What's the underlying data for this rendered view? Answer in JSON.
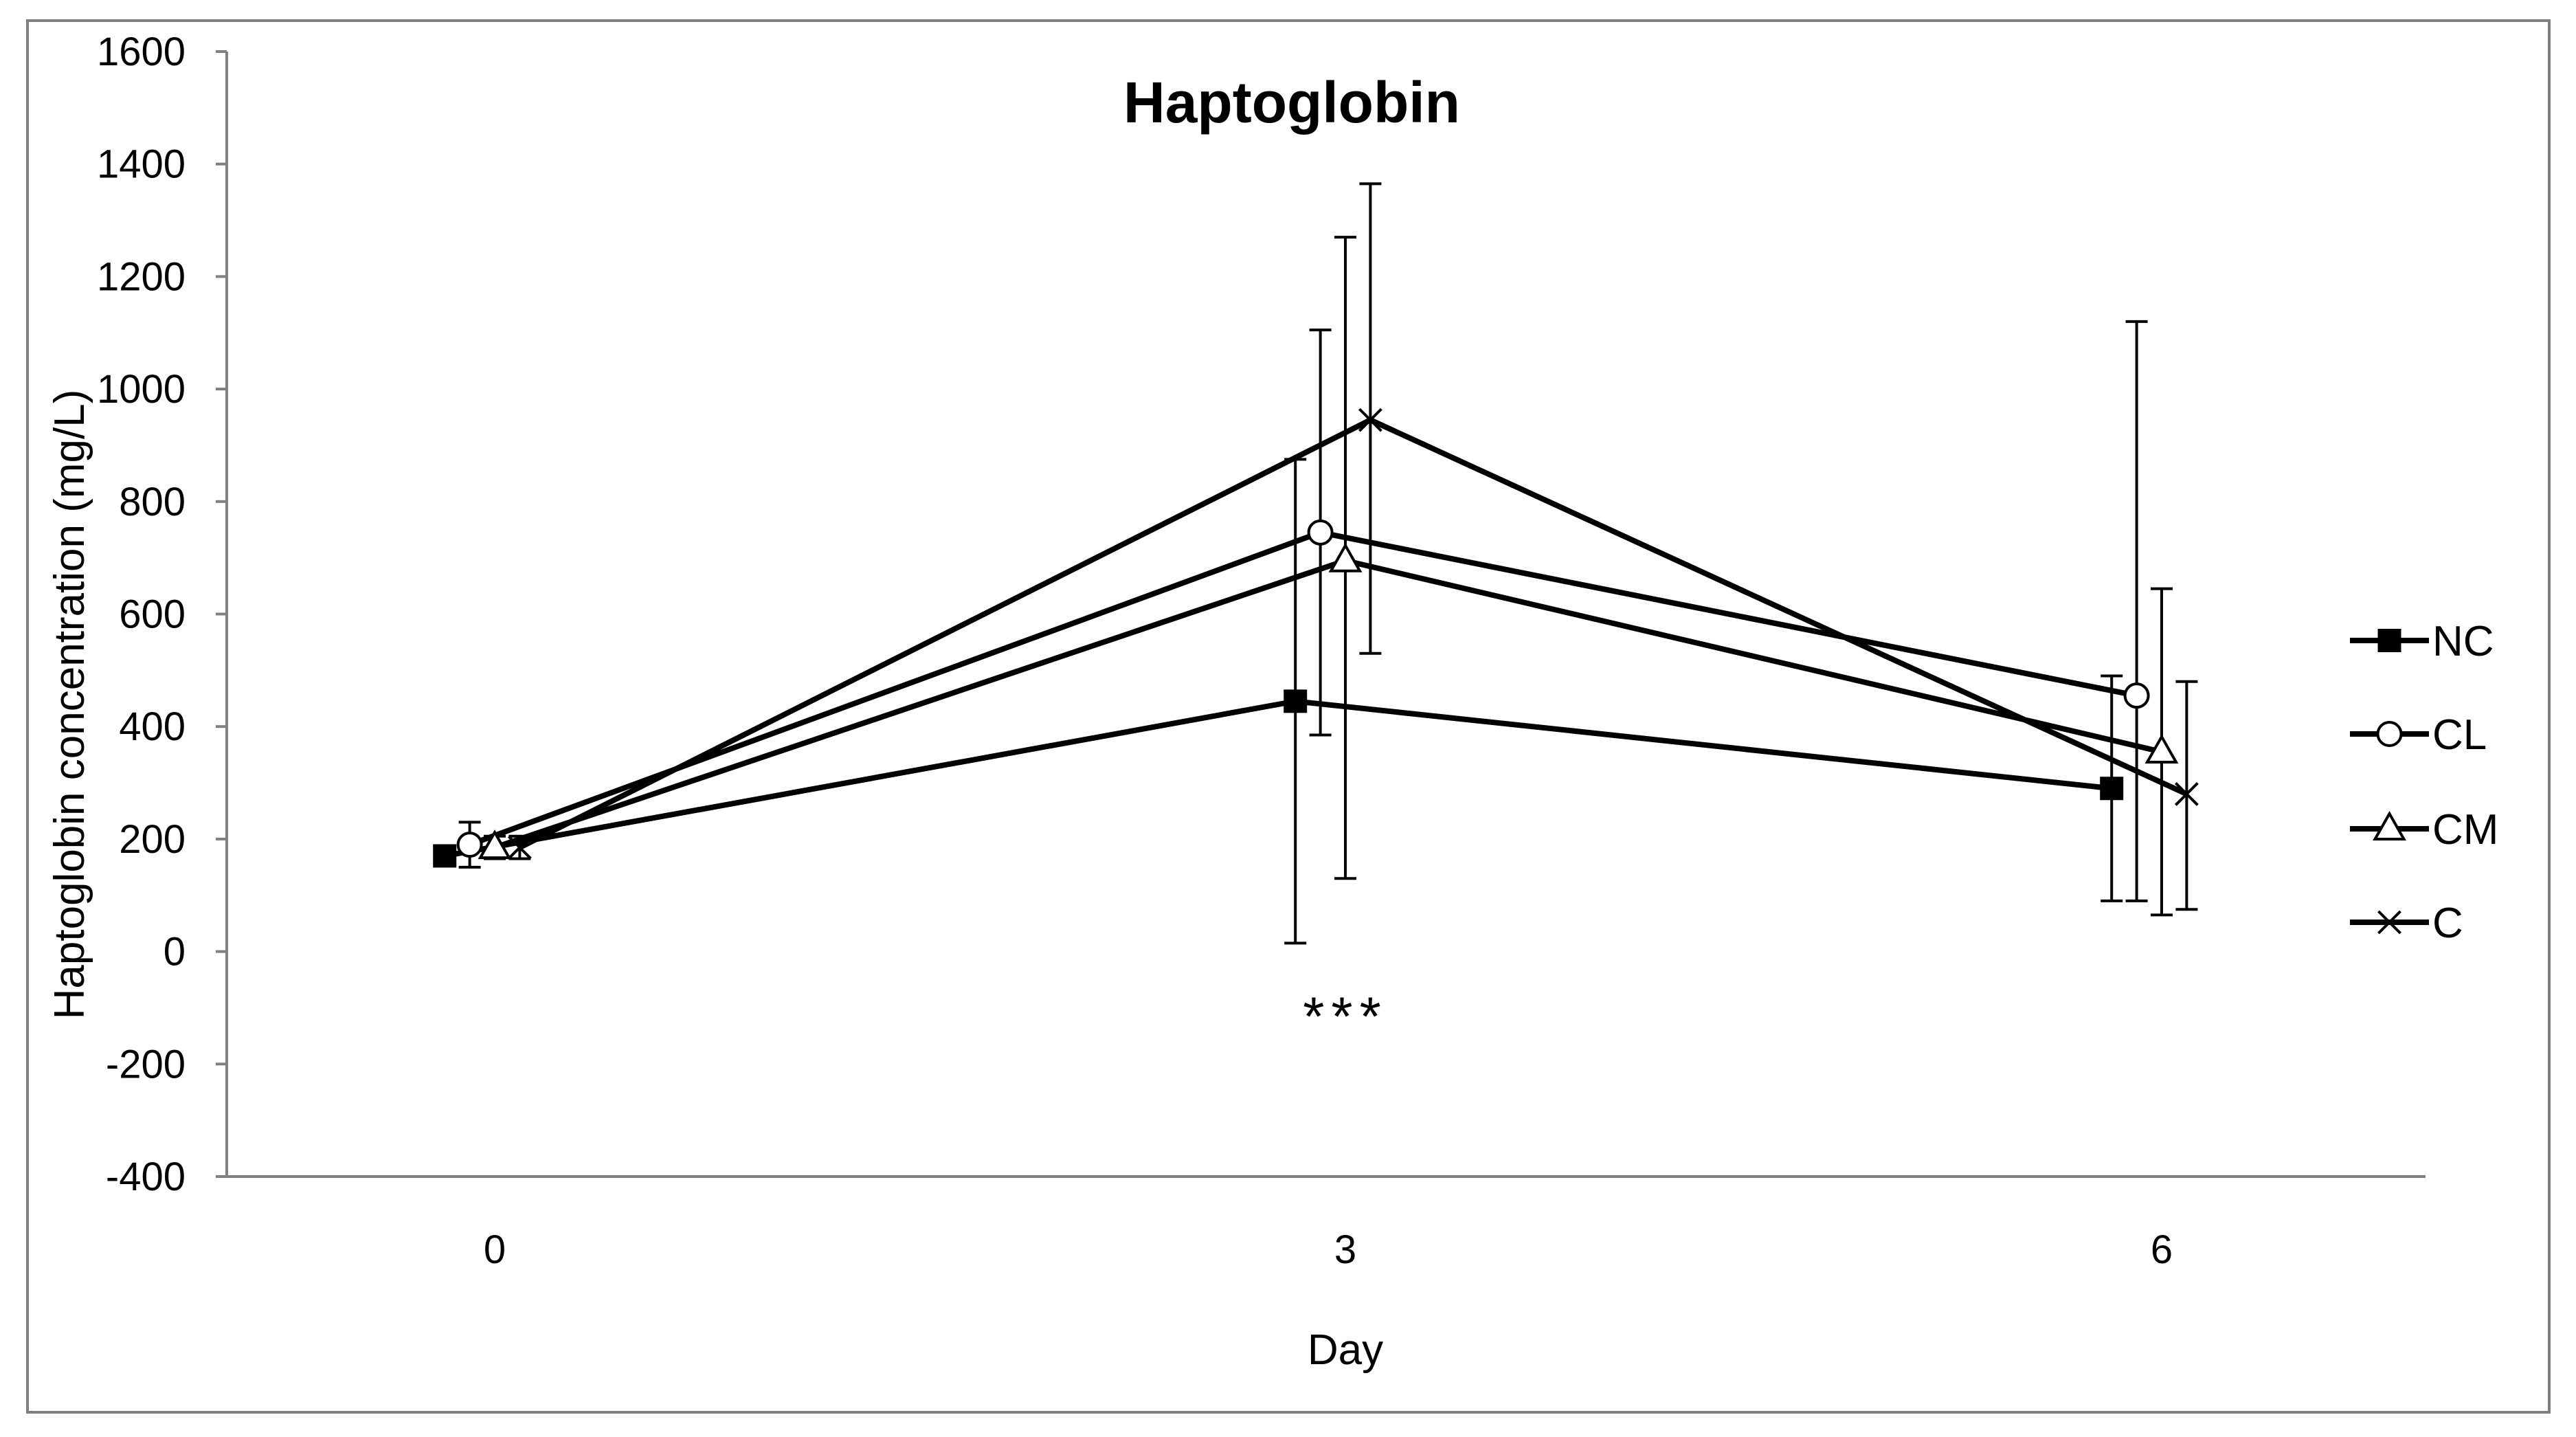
{
  "chart_data": {
    "type": "line",
    "title": "Haptoglobin",
    "xlabel": "Day",
    "ylabel": "Haptoglobin concentration (mg/L)",
    "ylim": [
      -400,
      1600
    ],
    "yticks": [
      "-400",
      "-200",
      "0",
      "200",
      "400",
      "600",
      "800",
      "1000",
      "1200",
      "1400",
      "1600"
    ],
    "categories": [
      "0",
      "3",
      "6"
    ],
    "x": [
      0,
      3,
      6
    ],
    "grid": false,
    "legend_position": "right",
    "annotations": [
      {
        "text": "***",
        "x": 3,
        "y": -115
      }
    ],
    "series": [
      {
        "name": "NC",
        "marker": "filled-square",
        "x_offset": -0.06,
        "values": [
          170,
          445,
          290
        ],
        "error_low": [
          160,
          15,
          90
        ],
        "error_high": [
          180,
          875,
          490
        ]
      },
      {
        "name": "CL",
        "marker": "open-circle",
        "x_offset": -0.03,
        "values": [
          190,
          745,
          455
        ],
        "error_low": [
          150,
          385,
          90
        ],
        "error_high": [
          230,
          1105,
          1120
        ]
      },
      {
        "name": "CM",
        "marker": "open-triangle",
        "x_offset": 0.0,
        "values": [
          185,
          695,
          355
        ],
        "error_low": [
          165,
          130,
          65
        ],
        "error_high": [
          205,
          1270,
          645
        ]
      },
      {
        "name": "C",
        "marker": "x",
        "x_offset": 0.03,
        "values": [
          185,
          945,
          280
        ],
        "error_low": [
          165,
          530,
          75
        ],
        "error_high": [
          205,
          1365,
          480
        ]
      }
    ],
    "colors": {
      "line": "#000000",
      "frame": "#7f7f7f",
      "axis": "#808080"
    }
  }
}
